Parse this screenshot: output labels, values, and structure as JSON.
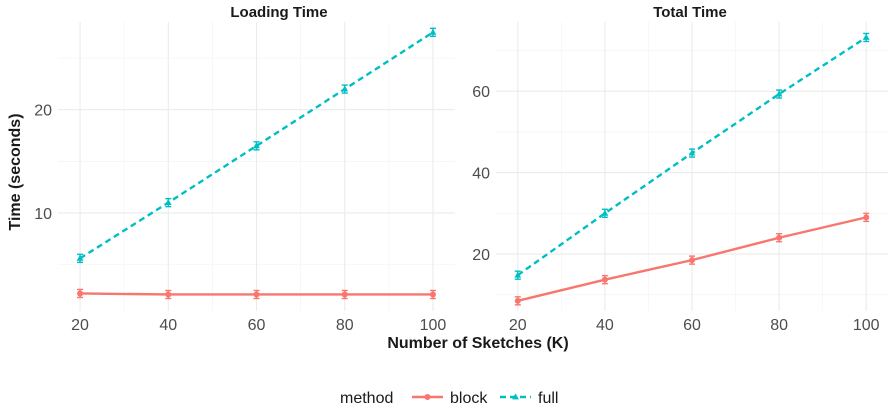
{
  "chart_data": {
    "type": "line",
    "x_label": "Number of Sketches (K)",
    "y_label": "Time (seconds)",
    "x_ticks": [
      20,
      40,
      60,
      80,
      100
    ],
    "x": [
      20,
      40,
      60,
      80,
      100
    ],
    "legend": {
      "title": "method",
      "position": "bottom",
      "entries": [
        "block",
        "full"
      ]
    },
    "colors": {
      "block": "#f8766d",
      "full": "#00bfc4"
    },
    "grid": true,
    "panels": [
      {
        "title": "Loading Time",
        "ylim": [
          0.5,
          28.5
        ],
        "y_ticks": [
          10,
          20
        ],
        "series": [
          {
            "name": "block",
            "values": [
              2.2,
              2.1,
              2.1,
              2.1,
              2.1
            ]
          },
          {
            "name": "full",
            "values": [
              5.6,
              11.0,
              16.5,
              22.0,
              27.5
            ]
          }
        ]
      },
      {
        "title": "Total Time",
        "ylim": [
          6,
          77
        ],
        "y_ticks": [
          20,
          40,
          60
        ],
        "series": [
          {
            "name": "block",
            "values": [
              8.5,
              13.7,
              18.5,
              24.0,
              29.0
            ]
          },
          {
            "name": "full",
            "values": [
              14.8,
              30.0,
              44.8,
              59.3,
              73.2
            ]
          }
        ]
      }
    ]
  }
}
